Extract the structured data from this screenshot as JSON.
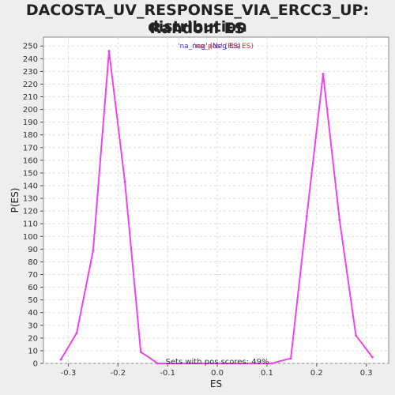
{
  "title_line1": "DACOSTA_UV_RESPONSE_VIA_ERCC3_UP: Random ES",
  "title_line2": "distribution",
  "colors": {
    "line": "#ee44ee",
    "legend_neg": "#3333cc",
    "legend_pos": "#cc3333",
    "grid": "#dddddd"
  },
  "chart_data": {
    "type": "line",
    "title": "DACOSTA_UV_RESPONSE_VIA_ERCC3_UP: Random ES distribution",
    "xlabel": "ES",
    "ylabel": "P(ES)",
    "xlim": [
      -0.35,
      0.345
    ],
    "ylim": [
      0,
      257
    ],
    "xticks": [
      -0.3,
      -0.2,
      -0.1,
      0.0,
      0.1,
      0.2,
      0.3
    ],
    "xtick_labels": [
      "-0.3",
      "-0.2",
      "-0.1",
      "0.0",
      "0.1",
      "0.2",
      "0.3"
    ],
    "yticks": [
      0,
      10,
      20,
      30,
      40,
      50,
      60,
      70,
      80,
      90,
      100,
      110,
      120,
      130,
      140,
      150,
      160,
      170,
      180,
      190,
      200,
      210,
      220,
      230,
      240,
      250
    ],
    "grid": true,
    "legend": [
      {
        "label": "'na_neg' (Neg ES)",
        "color": "#3333cc"
      },
      {
        "label": "'na_pos' (Pos ES)",
        "color": "#cc3333"
      }
    ],
    "legend_position": "top-center",
    "annotation": "Sets with pos scores: 49%",
    "series": [
      {
        "values": [
          [
            -0.315,
            3
          ],
          [
            -0.283,
            24
          ],
          [
            -0.25,
            89
          ],
          [
            -0.218,
            246
          ],
          [
            -0.186,
            143
          ],
          [
            -0.154,
            9
          ],
          [
            -0.12,
            0
          ],
          [
            0.11,
            0
          ],
          [
            0.148,
            4
          ],
          [
            0.18,
            116
          ],
          [
            0.213,
            228
          ],
          [
            0.246,
            113
          ],
          [
            0.279,
            22
          ],
          [
            0.312,
            5
          ]
        ]
      }
    ]
  }
}
